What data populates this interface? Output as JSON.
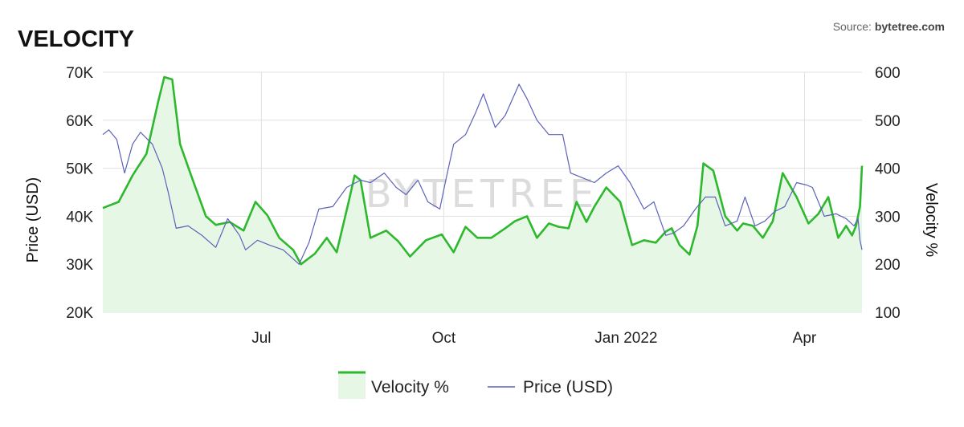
{
  "header": {
    "title": "VELOCITY",
    "source_prefix": "Source: ",
    "source_name": "bytetree.com"
  },
  "watermark": "BYTETREE",
  "colors": {
    "velocity_line": "#2db82d",
    "velocity_fill": "#e6f7e6",
    "price_line": "#5b62b8",
    "grid": "#e0e0e0"
  },
  "chart_data": {
    "type": "area",
    "x_axis": {
      "range": [
        "2021-04-12",
        "2022-04-30"
      ],
      "tick_labels": [
        "Jul",
        "Oct",
        "Jan 2022",
        "Apr"
      ],
      "tick_dates": [
        "2021-07-01",
        "2021-10-01",
        "2022-01-01",
        "2022-04-01"
      ]
    },
    "y_left": {
      "label": "Price (USD)",
      "range": [
        20000,
        70000
      ],
      "ticks": [
        "20K",
        "30K",
        "40K",
        "50K",
        "60K",
        "70K"
      ]
    },
    "y_right": {
      "label": "Velocity %",
      "range": [
        100,
        600
      ],
      "ticks": [
        "100",
        "200",
        "300",
        "400",
        "500",
        "600"
      ]
    },
    "legend": {
      "position": "bottom",
      "items": [
        "Velocity %",
        "Price (USD)"
      ]
    },
    "grid": true,
    "series": [
      {
        "name": "Velocity %",
        "axis": "right",
        "style": "area",
        "points": [
          [
            "2021-04-12",
            317
          ],
          [
            "2021-04-20",
            330
          ],
          [
            "2021-04-27",
            385
          ],
          [
            "2021-05-04",
            430
          ],
          [
            "2021-05-10",
            540
          ],
          [
            "2021-05-13",
            590
          ],
          [
            "2021-05-17",
            585
          ],
          [
            "2021-05-21",
            450
          ],
          [
            "2021-05-27",
            380
          ],
          [
            "2021-06-03",
            300
          ],
          [
            "2021-06-08",
            282
          ],
          [
            "2021-06-15",
            288
          ],
          [
            "2021-06-22",
            270
          ],
          [
            "2021-06-28",
            330
          ],
          [
            "2021-07-04",
            302
          ],
          [
            "2021-07-10",
            255
          ],
          [
            "2021-07-17",
            230
          ],
          [
            "2021-07-21",
            200
          ],
          [
            "2021-07-28",
            222
          ],
          [
            "2021-08-03",
            255
          ],
          [
            "2021-08-08",
            225
          ],
          [
            "2021-08-14",
            330
          ],
          [
            "2021-08-17",
            385
          ],
          [
            "2021-08-20",
            375
          ],
          [
            "2021-08-25",
            255
          ],
          [
            "2021-09-02",
            270
          ],
          [
            "2021-09-08",
            248
          ],
          [
            "2021-09-14",
            216
          ],
          [
            "2021-09-22",
            250
          ],
          [
            "2021-09-30",
            262
          ],
          [
            "2021-10-06",
            225
          ],
          [
            "2021-10-12",
            278
          ],
          [
            "2021-10-18",
            255
          ],
          [
            "2021-10-25",
            255
          ],
          [
            "2021-11-01",
            275
          ],
          [
            "2021-11-06",
            290
          ],
          [
            "2021-11-12",
            300
          ],
          [
            "2021-11-17",
            255
          ],
          [
            "2021-11-23",
            285
          ],
          [
            "2021-11-28",
            278
          ],
          [
            "2021-12-03",
            275
          ],
          [
            "2021-12-07",
            330
          ],
          [
            "2021-12-12",
            288
          ],
          [
            "2021-12-16",
            320
          ],
          [
            "2021-12-22",
            360
          ],
          [
            "2021-12-29",
            330
          ],
          [
            "2022-01-04",
            240
          ],
          [
            "2022-01-10",
            250
          ],
          [
            "2022-01-16",
            245
          ],
          [
            "2022-01-21",
            268
          ],
          [
            "2022-01-24",
            275
          ],
          [
            "2022-01-28",
            240
          ],
          [
            "2022-02-02",
            220
          ],
          [
            "2022-02-06",
            280
          ],
          [
            "2022-02-09",
            410
          ],
          [
            "2022-02-14",
            395
          ],
          [
            "2022-02-20",
            300
          ],
          [
            "2022-02-26",
            270
          ],
          [
            "2022-03-01",
            285
          ],
          [
            "2022-03-06",
            280
          ],
          [
            "2022-03-11",
            255
          ],
          [
            "2022-03-16",
            290
          ],
          [
            "2022-03-21",
            390
          ],
          [
            "2022-03-28",
            340
          ],
          [
            "2022-04-03",
            285
          ],
          [
            "2022-04-08",
            305
          ],
          [
            "2022-04-13",
            340
          ],
          [
            "2022-04-18",
            255
          ],
          [
            "2022-04-22",
            280
          ],
          [
            "2022-04-25",
            260
          ],
          [
            "2022-04-27",
            280
          ],
          [
            "2022-04-29",
            320
          ],
          [
            "2022-04-30",
            405
          ]
        ]
      },
      {
        "name": "Price (USD)",
        "axis": "left",
        "style": "line",
        "points": [
          [
            "2021-04-12",
            57000
          ],
          [
            "2021-04-15",
            58000
          ],
          [
            "2021-04-19",
            56000
          ],
          [
            "2021-04-23",
            49000
          ],
          [
            "2021-04-27",
            55000
          ],
          [
            "2021-05-01",
            57500
          ],
          [
            "2021-05-07",
            55000
          ],
          [
            "2021-05-12",
            50000
          ],
          [
            "2021-05-15",
            45000
          ],
          [
            "2021-05-19",
            37500
          ],
          [
            "2021-05-25",
            38000
          ],
          [
            "2021-06-01",
            36000
          ],
          [
            "2021-06-08",
            33500
          ],
          [
            "2021-06-14",
            39500
          ],
          [
            "2021-06-20",
            36000
          ],
          [
            "2021-06-23",
            33000
          ],
          [
            "2021-06-29",
            35000
          ],
          [
            "2021-07-05",
            34000
          ],
          [
            "2021-07-12",
            33000
          ],
          [
            "2021-07-20",
            30000
          ],
          [
            "2021-07-25",
            34500
          ],
          [
            "2021-07-30",
            41500
          ],
          [
            "2021-08-06",
            42000
          ],
          [
            "2021-08-13",
            46000
          ],
          [
            "2021-08-20",
            47500
          ],
          [
            "2021-08-25",
            47000
          ],
          [
            "2021-09-01",
            49000
          ],
          [
            "2021-09-07",
            46000
          ],
          [
            "2021-09-12",
            44500
          ],
          [
            "2021-09-18",
            47500
          ],
          [
            "2021-09-23",
            43000
          ],
          [
            "2021-09-29",
            41500
          ],
          [
            "2021-10-02",
            47500
          ],
          [
            "2021-10-06",
            55000
          ],
          [
            "2021-10-12",
            57000
          ],
          [
            "2021-10-17",
            61500
          ],
          [
            "2021-10-21",
            65500
          ],
          [
            "2021-10-27",
            58500
          ],
          [
            "2021-11-01",
            61000
          ],
          [
            "2021-11-08",
            67500
          ],
          [
            "2021-11-12",
            64500
          ],
          [
            "2021-11-17",
            60000
          ],
          [
            "2021-11-23",
            57000
          ],
          [
            "2021-11-30",
            57000
          ],
          [
            "2021-12-04",
            49000
          ],
          [
            "2021-12-10",
            48000
          ],
          [
            "2021-12-16",
            47000
          ],
          [
            "2021-12-22",
            49000
          ],
          [
            "2021-12-28",
            50500
          ],
          [
            "2022-01-03",
            47000
          ],
          [
            "2022-01-10",
            41500
          ],
          [
            "2022-01-15",
            43000
          ],
          [
            "2022-01-21",
            36000
          ],
          [
            "2022-01-25",
            36500
          ],
          [
            "2022-01-30",
            38000
          ],
          [
            "2022-02-05",
            41500
          ],
          [
            "2022-02-10",
            44000
          ],
          [
            "2022-02-15",
            44000
          ],
          [
            "2022-02-20",
            38000
          ],
          [
            "2022-02-26",
            39000
          ],
          [
            "2022-03-02",
            44000
          ],
          [
            "2022-03-07",
            38000
          ],
          [
            "2022-03-12",
            39000
          ],
          [
            "2022-03-17",
            41000
          ],
          [
            "2022-03-22",
            42000
          ],
          [
            "2022-03-28",
            47000
          ],
          [
            "2022-04-02",
            46500
          ],
          [
            "2022-04-05",
            46000
          ],
          [
            "2022-04-11",
            40000
          ],
          [
            "2022-04-17",
            40500
          ],
          [
            "2022-04-22",
            39500
          ],
          [
            "2022-04-26",
            38000
          ],
          [
            "2022-04-28",
            39500
          ],
          [
            "2022-04-29",
            35000
          ],
          [
            "2022-04-30",
            33000
          ]
        ]
      }
    ]
  }
}
